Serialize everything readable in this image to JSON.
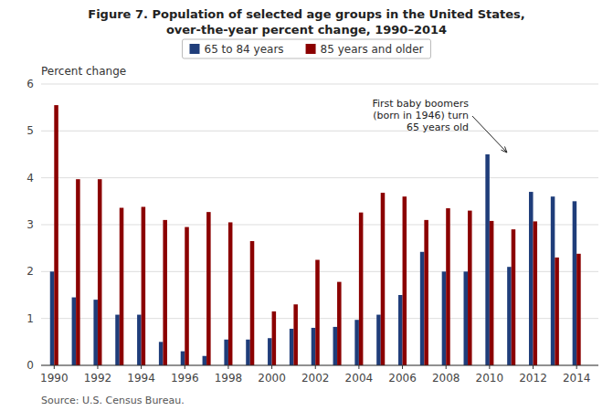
{
  "chart_data": {
    "type": "bar",
    "title": "Figure 7. Population of selected age groups in the United States,",
    "subtitle": "over-the-year percent change, 1990–2014",
    "ylabel": "Percent change",
    "source": "Source: U.S. Census Bureau.",
    "x": [
      1990,
      1991,
      1992,
      1993,
      1994,
      1995,
      1996,
      1997,
      1998,
      1999,
      2000,
      2001,
      2002,
      2003,
      2004,
      2005,
      2006,
      2007,
      2008,
      2009,
      2010,
      2011,
      2012,
      2013,
      2014
    ],
    "series": [
      {
        "name": "65 to 84 years",
        "color": "#1f3d7a",
        "values": [
          2.0,
          1.45,
          1.4,
          1.08,
          1.08,
          0.5,
          0.3,
          0.2,
          0.55,
          0.55,
          0.58,
          0.78,
          0.8,
          0.82,
          0.97,
          1.08,
          1.5,
          2.42,
          2.0,
          2.0,
          4.5,
          2.1,
          3.7,
          3.6,
          3.5
        ]
      },
      {
        "name": "85 years and older",
        "color": "#8b0000",
        "values": [
          5.55,
          3.97,
          3.97,
          3.36,
          3.38,
          3.1,
          2.95,
          3.27,
          3.05,
          2.65,
          1.15,
          1.3,
          2.25,
          1.78,
          3.26,
          3.68,
          3.6,
          3.1,
          3.35,
          3.3,
          3.08,
          2.9,
          3.07,
          2.3,
          2.38
        ]
      }
    ],
    "xlim": [
      1989.4,
      2015.0
    ],
    "xticks": [
      1990,
      1992,
      1994,
      1996,
      1998,
      2000,
      2002,
      2004,
      2006,
      2008,
      2010,
      2012,
      2014
    ],
    "ylim": [
      0,
      6
    ],
    "yticks": [
      0,
      1,
      2,
      3,
      4,
      5,
      6
    ],
    "grid": true,
    "legend": "top",
    "annotations": [
      {
        "text": "First baby boomers\n(born in 1946) turn\n65 years old",
        "x": 2010.8,
        "y": 4.5
      }
    ]
  }
}
